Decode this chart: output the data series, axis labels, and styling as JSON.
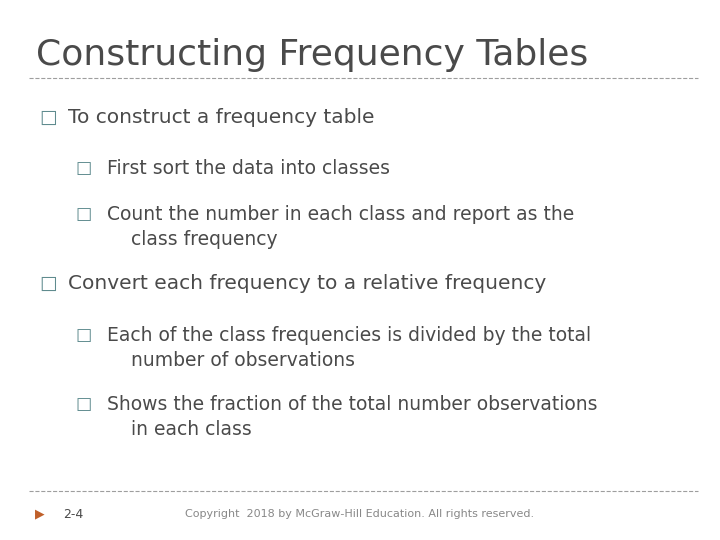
{
  "title": "Constructing Frequency Tables",
  "title_color": "#4a4a4a",
  "title_fontsize": 26,
  "background_color": "#ffffff",
  "line_color": "#9e9e9e",
  "bullet_color": "#5f8b8e",
  "text_color": "#4a4a4a",
  "footer_text": "Copyright  2018 by McGraw-Hill Education. All rights reserved.",
  "slide_number": "2-4",
  "bullet_char": "□",
  "arrow_char": "▶",
  "content": [
    {
      "level": 0,
      "text": "To construct a frequency table"
    },
    {
      "level": 1,
      "text": "First sort the data into classes"
    },
    {
      "level": 1,
      "text": "Count the number in each class and report as the\n    class frequency"
    },
    {
      "level": 0,
      "text": "Convert each frequency to a relative frequency"
    },
    {
      "level": 1,
      "text": "Each of the class frequencies is divided by the total\n    number of observations"
    },
    {
      "level": 1,
      "text": "Shows the fraction of the total number observations\n    in each class"
    }
  ]
}
